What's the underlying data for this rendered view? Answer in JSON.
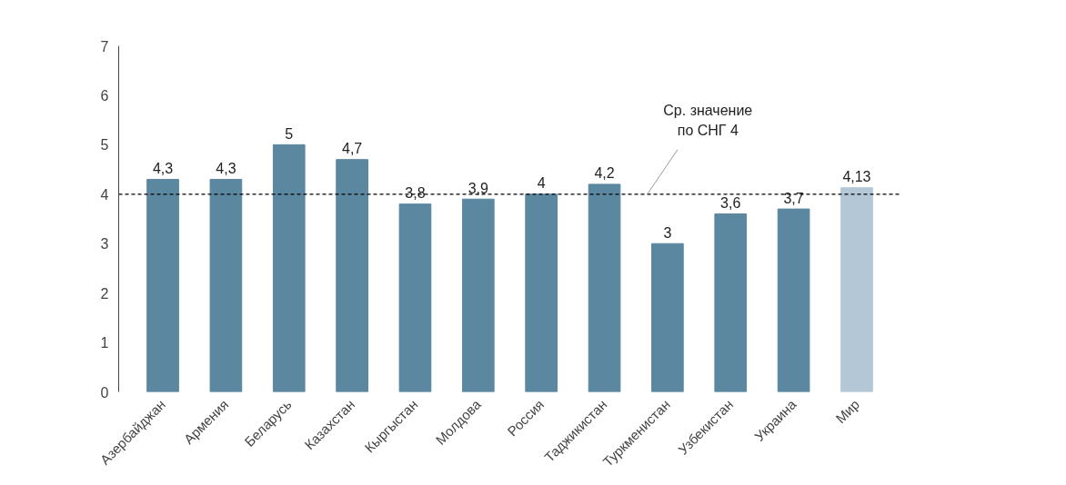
{
  "chart_data": {
    "type": "bar",
    "categories": [
      "Азербайджан",
      "Армения",
      "Беларусь",
      "Казахстан",
      "Кыргыстан",
      "Молдова",
      "Россия",
      "Таджикистан",
      "Туркменистан",
      "Узбекистан",
      "Украина",
      "Мир"
    ],
    "values": [
      4.3,
      4.3,
      5,
      4.7,
      3.8,
      3.9,
      4,
      4.2,
      3,
      3.6,
      3.7,
      4.13
    ],
    "colors": [
      "#5b87a0",
      "#5b87a0",
      "#5b87a0",
      "#5b87a0",
      "#5b87a0",
      "#5b87a0",
      "#5b87a0",
      "#5b87a0",
      "#5b87a0",
      "#5b87a0",
      "#5b87a0",
      "#b3c7d6"
    ],
    "value_labels": [
      "4,3",
      "4,3",
      "5",
      "4,7",
      "3,8",
      "3,9",
      "4",
      "4,2",
      "3",
      "3,6",
      "3,7",
      "4,13"
    ],
    "ylim": [
      0,
      7
    ],
    "yticks": [
      0,
      1,
      2,
      3,
      4,
      5,
      6,
      7
    ],
    "ref_lines": [
      {
        "axis": "y",
        "value": 4,
        "label": "Ср. значение\nпо СНГ 4",
        "color": "#000000",
        "line_style": "dashed"
      }
    ],
    "grid": false
  }
}
